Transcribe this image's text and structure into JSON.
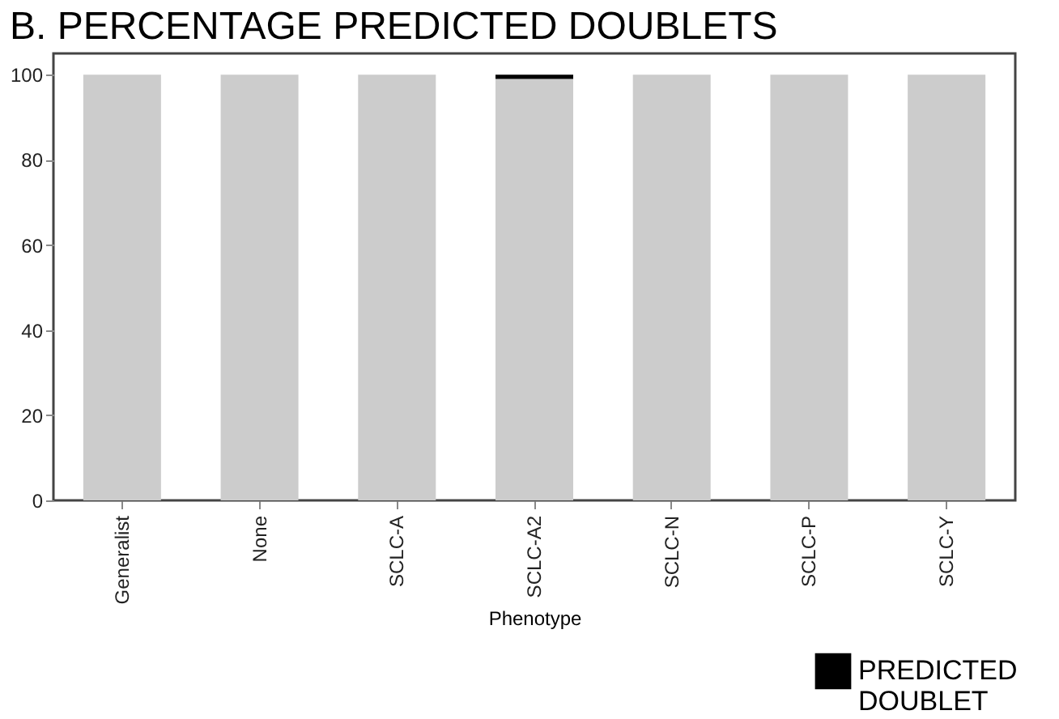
{
  "chart_data": {
    "type": "bar",
    "stacked": true,
    "title": "B. PERCENTAGE PREDICTED DOUBLETS",
    "xlabel": "Phenotype",
    "categories": [
      "Generalist",
      "None",
      "SCLC-A",
      "SCLC-A2",
      "SCLC-N",
      "SCLC-P",
      "SCLC-Y"
    ],
    "series": [
      {
        "color": "#cccccc",
        "values": [
          100,
          100,
          100,
          99,
          100,
          100,
          100
        ]
      },
      {
        "name": "PREDICTED DOUBLET",
        "color": "#000000",
        "values": [
          0,
          0,
          0,
          1,
          0,
          0,
          0
        ]
      }
    ],
    "ylim": [
      0,
      105
    ],
    "yticks": [
      0,
      20,
      40,
      60,
      80,
      100
    ],
    "grid": false,
    "legend": "bottom right"
  }
}
